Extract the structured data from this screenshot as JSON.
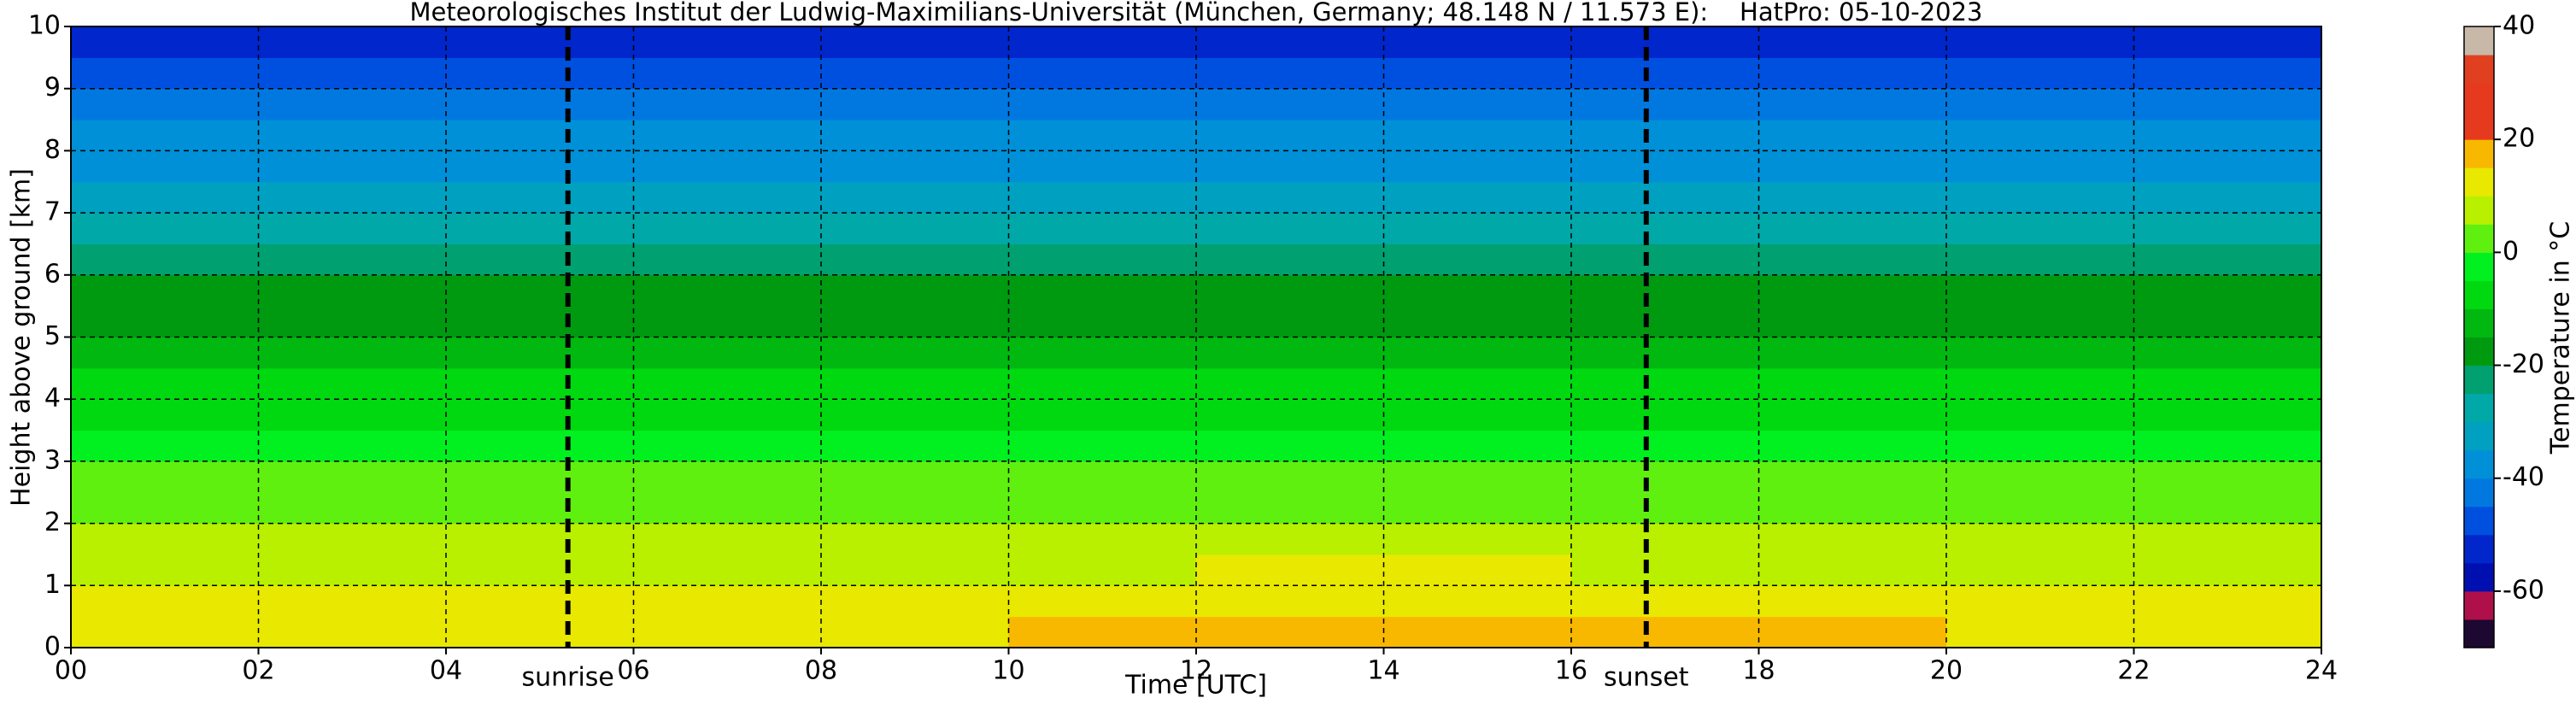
{
  "chart_data": {
    "type": "heatmap",
    "title": "Meteorologisches Institut der Ludwig-Maximilians-Universität (München, Germany; 48.148 N / 11.573 E):    HatPro: 05-10-2023",
    "x_label": "Time [UTC]",
    "y_label": "Height above ground [km]",
    "x": [
      0,
      2,
      4,
      6,
      8,
      10,
      12,
      14,
      16,
      18,
      20,
      22,
      24
    ],
    "y": [
      0,
      0.5,
      1,
      1.5,
      2,
      2.5,
      3,
      3.5,
      4,
      4.5,
      5,
      5.5,
      6,
      6.5,
      7,
      7.5,
      8,
      8.5,
      9,
      9.5,
      10
    ],
    "values": [
      [
        14,
        14,
        13,
        13,
        14,
        15,
        17,
        17,
        16,
        15,
        14,
        14
      ],
      [
        11,
        11,
        10,
        10,
        11,
        12,
        13,
        13,
        12,
        12,
        11,
        11
      ],
      [
        8,
        8,
        8,
        8,
        8,
        9,
        10,
        10,
        9,
        9,
        8,
        8
      ],
      [
        6,
        6,
        5,
        5,
        6,
        6,
        7,
        7,
        6,
        6,
        6,
        6
      ],
      [
        3,
        3,
        3,
        3,
        3,
        3,
        4,
        4,
        4,
        3,
        3,
        3
      ],
      [
        0,
        0,
        0,
        0,
        0,
        0,
        1,
        1,
        1,
        0,
        0,
        0
      ],
      [
        -3,
        -3,
        -3,
        -3,
        -3,
        -3,
        -2,
        -2,
        -2,
        -3,
        -3,
        -3
      ],
      [
        -7,
        -7,
        -7,
        -7,
        -7,
        -7,
        -6,
        -6,
        -6,
        -7,
        -7,
        -7
      ],
      [
        -10,
        -10,
        -10,
        -10,
        -10,
        -10,
        -10,
        -10,
        -10,
        -10,
        -10,
        -10
      ],
      [
        -13,
        -13,
        -13,
        -13,
        -13,
        -13,
        -13,
        -13,
        -13,
        -13,
        -13,
        -13
      ],
      [
        -16,
        -16,
        -16,
        -16,
        -16,
        -16,
        -16,
        -16,
        -16,
        -16,
        -16,
        -16
      ],
      [
        -19,
        -19,
        -19,
        -19,
        -19,
        -19,
        -19,
        -19,
        -19,
        -19,
        -19,
        -19
      ],
      [
        -22,
        -22,
        -22,
        -22,
        -22,
        -22,
        -22,
        -22,
        -22,
        -22,
        -22,
        -22
      ],
      [
        -27,
        -27,
        -27,
        -27,
        -27,
        -27,
        -27,
        -27,
        -27,
        -27,
        -27,
        -27
      ],
      [
        -31,
        -31,
        -31,
        -31,
        -31,
        -31,
        -31,
        -31,
        -31,
        -31,
        -31,
        -31
      ],
      [
        -36,
        -36,
        -36,
        -36,
        -36,
        -36,
        -36,
        -36,
        -36,
        -36,
        -36,
        -36
      ],
      [
        -40,
        -40,
        -40,
        -40,
        -40,
        -40,
        -40,
        -40,
        -40,
        -40,
        -40,
        -40
      ],
      [
        -44,
        -44,
        -44,
        -44,
        -44,
        -44,
        -44,
        -44,
        -44,
        -44,
        -44,
        -44
      ],
      [
        -49,
        -49,
        -49,
        -49,
        -49,
        -49,
        -49,
        -49,
        -49,
        -49,
        -49,
        -49
      ],
      [
        -54,
        -54,
        -54,
        -54,
        -54,
        -54,
        -54,
        -54,
        -54,
        -54,
        -54,
        -54
      ]
    ],
    "xlim": [
      0,
      24
    ],
    "ylim": [
      0,
      10
    ],
    "xticks": [
      {
        "value": 0,
        "label": "00"
      },
      {
        "value": 2,
        "label": "02"
      },
      {
        "value": 4,
        "label": "04"
      },
      {
        "value": 6,
        "label": "06"
      },
      {
        "value": 8,
        "label": "08"
      },
      {
        "value": 10,
        "label": "10"
      },
      {
        "value": 12,
        "label": "12"
      },
      {
        "value": 14,
        "label": "14"
      },
      {
        "value": 16,
        "label": "16"
      },
      {
        "value": 18,
        "label": "18"
      },
      {
        "value": 20,
        "label": "20"
      },
      {
        "value": 22,
        "label": "22"
      },
      {
        "value": 24,
        "label": "24"
      }
    ],
    "yticks": [
      0,
      1,
      2,
      3,
      4,
      5,
      6,
      7,
      8,
      9,
      10
    ],
    "grid": true,
    "annotations": [
      {
        "x": 5.3,
        "label": "sunrise"
      },
      {
        "x": 16.8,
        "label": "sunset"
      }
    ],
    "colorbar": {
      "label": "Temperature in °C",
      "lim": [
        -70,
        40
      ],
      "ticks": [
        -60,
        -40,
        -20,
        0,
        20,
        40
      ],
      "levels": [
        -70,
        -65,
        -60,
        -55,
        -50,
        -45,
        -40,
        -35,
        -30,
        -25,
        -20,
        -15,
        -10,
        -5,
        0,
        5,
        10,
        15,
        20,
        25,
        30,
        35,
        40
      ],
      "colors": [
        "#1c0830",
        "#b0104a",
        "#0010b0",
        "#0026cc",
        "#0050e0",
        "#0078e0",
        "#0090d8",
        "#00a0c0",
        "#00a8a8",
        "#00a070",
        "#009a10",
        "#00b810",
        "#00d810",
        "#00f020",
        "#60f010",
        "#b8f000",
        "#e8e800",
        "#f8b800",
        "#e63a1e",
        "#e63a1e",
        "#e04020",
        "#c8b8a8"
      ]
    }
  }
}
